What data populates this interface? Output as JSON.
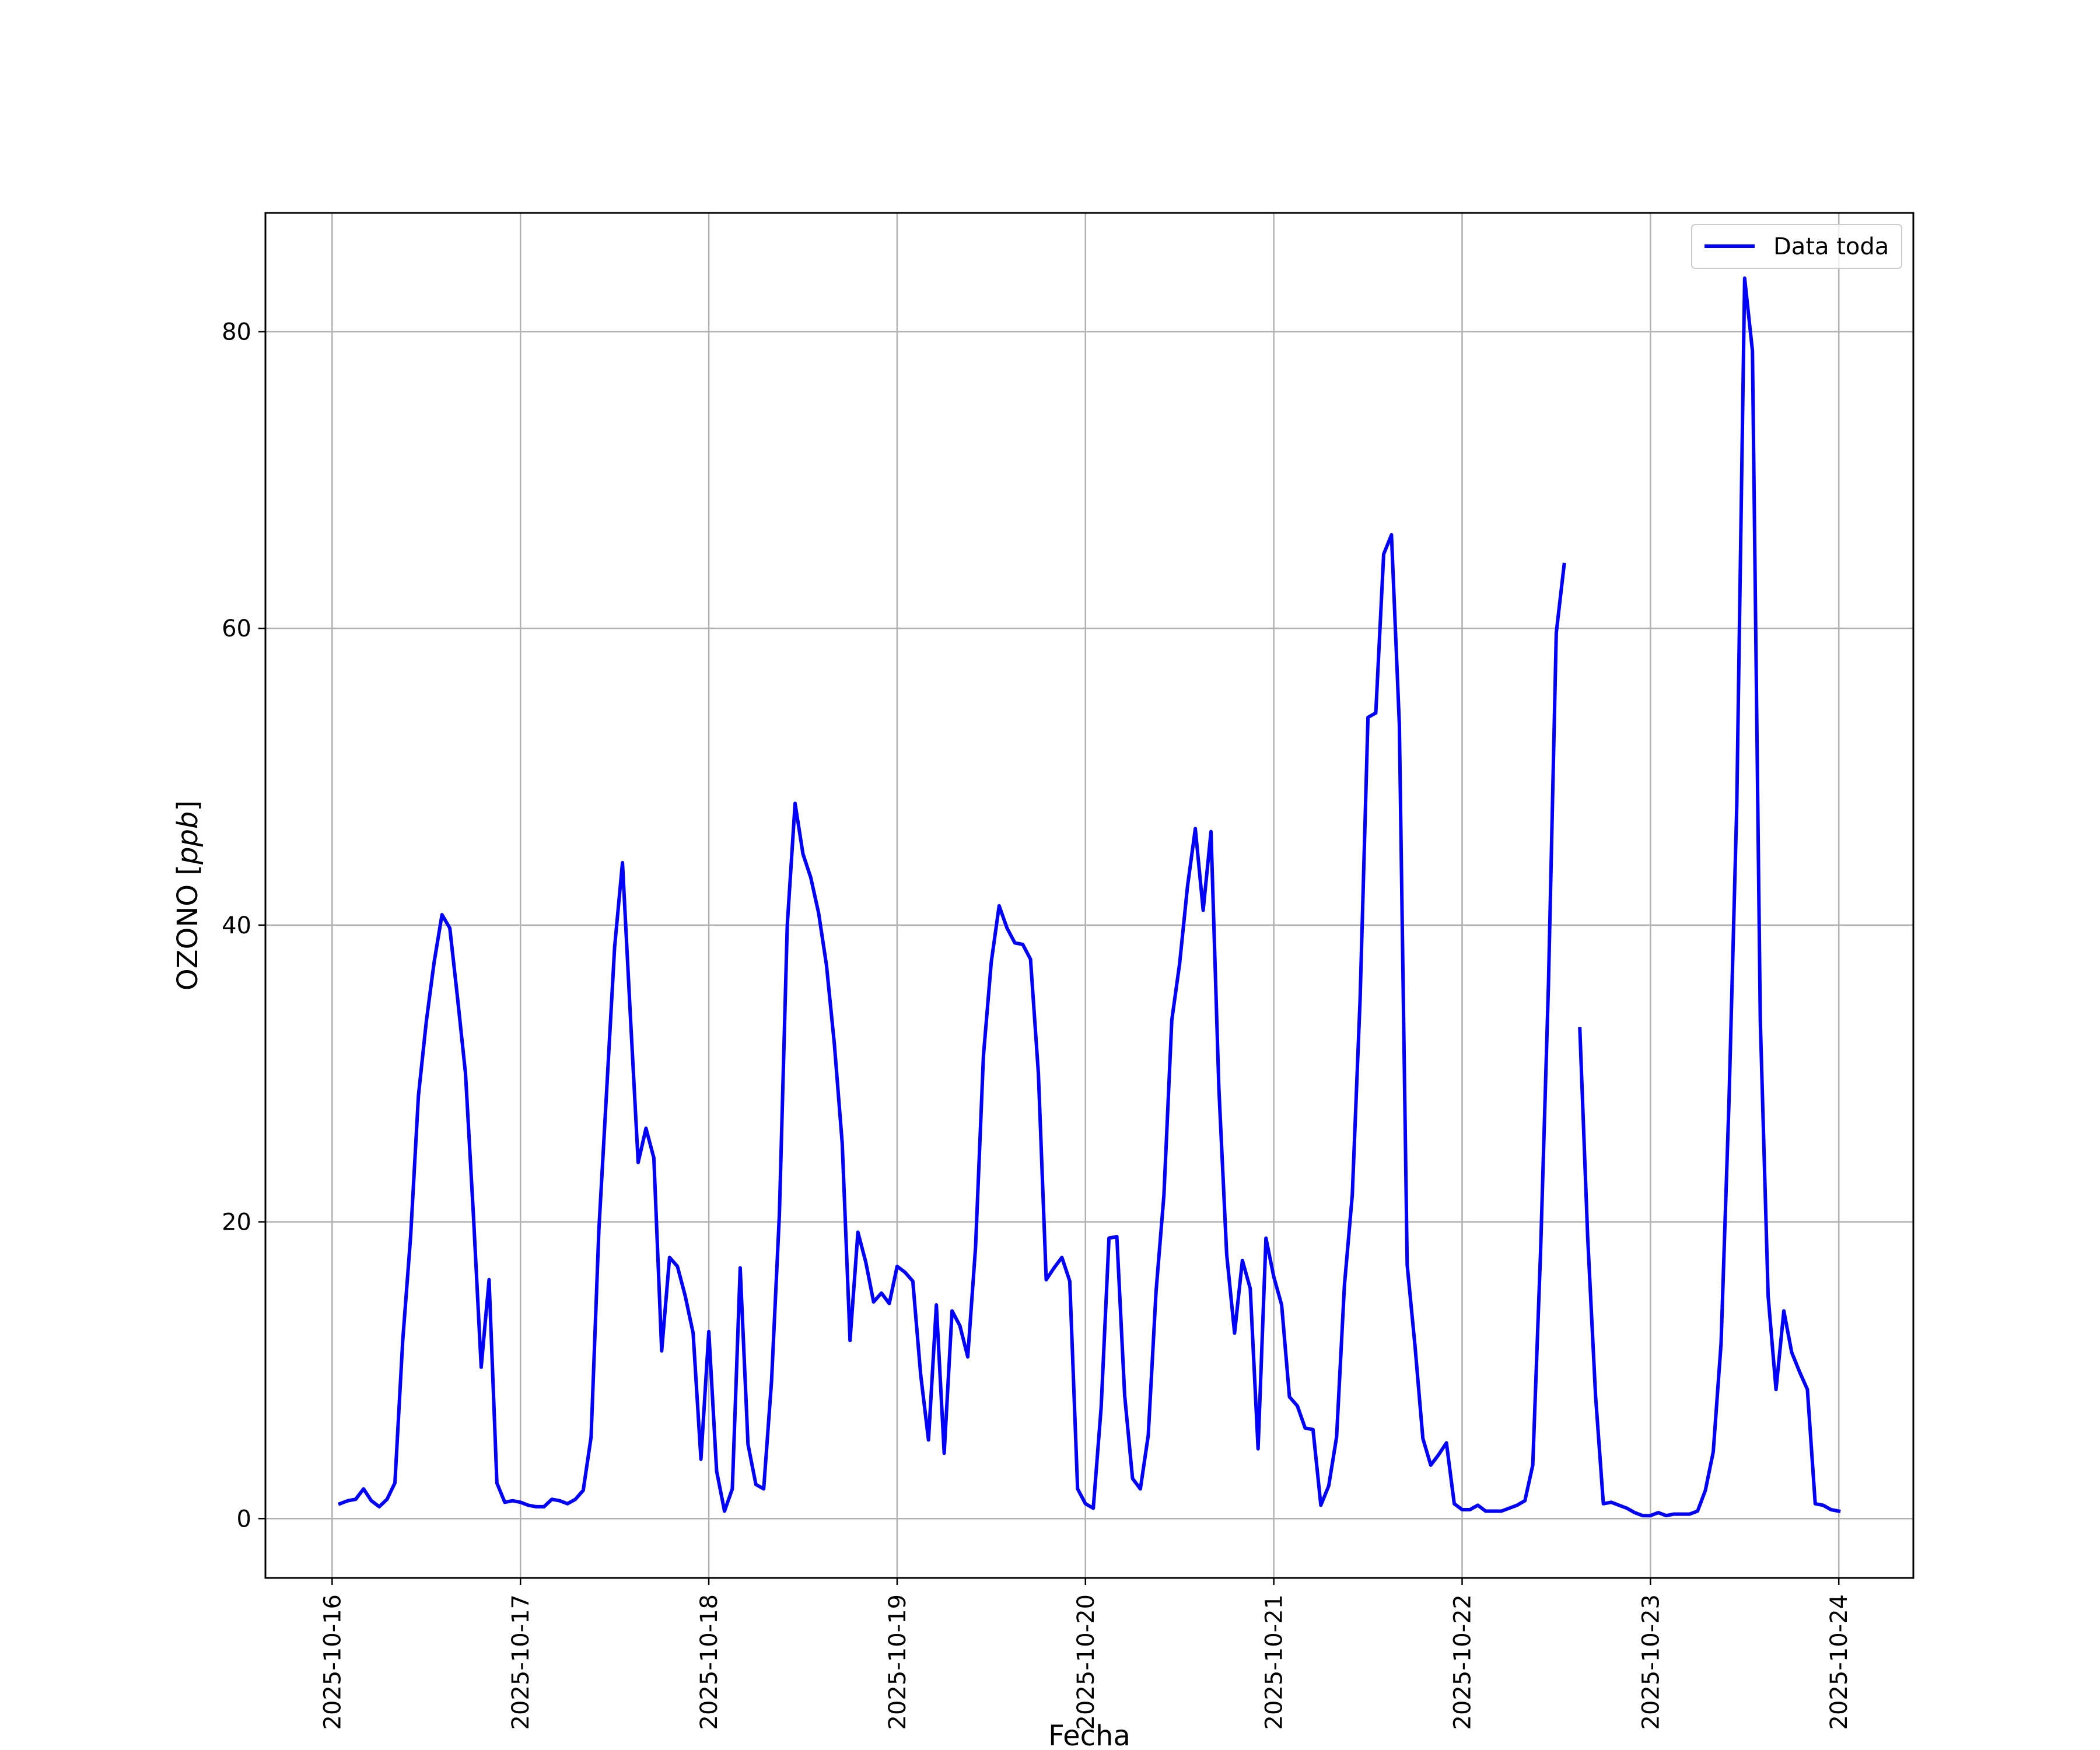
{
  "chart_data": {
    "type": "line",
    "title": "",
    "xlabel": "Fecha",
    "ylabel": "OZONO [ppb]",
    "ylabel_parts": {
      "prefix": "OZONO [",
      "unit": "ppb",
      "suffix": "]"
    },
    "legend": {
      "entries": [
        "Data toda"
      ],
      "placement": "upper right"
    },
    "grid": true,
    "x_type": "datetime",
    "xlim": [
      "2025-10-15T15:30",
      "2025-10-24T09:30"
    ],
    "ylim": [
      -4,
      88
    ],
    "x_ticks": [
      "2025-10-16",
      "2025-10-17",
      "2025-10-18",
      "2025-10-19",
      "2025-10-20",
      "2025-10-21",
      "2025-10-22",
      "2025-10-23",
      "2025-10-24"
    ],
    "y_ticks": [
      0,
      20,
      40,
      60,
      80
    ],
    "colors": {
      "series": "#0000ff",
      "grid": "#b0b0b0",
      "axes": "#000000"
    },
    "series": [
      {
        "name": "Data toda",
        "points": [
          [
            "2025-10-16T01:00",
            1.0
          ],
          [
            "2025-10-16T02:00",
            1.2
          ],
          [
            "2025-10-16T03:00",
            1.3
          ],
          [
            "2025-10-16T04:00",
            2.0
          ],
          [
            "2025-10-16T05:00",
            1.2
          ],
          [
            "2025-10-16T06:00",
            0.8
          ],
          [
            "2025-10-16T07:00",
            1.3
          ],
          [
            "2025-10-16T08:00",
            2.4
          ],
          [
            "2025-10-16T09:00",
            12.0
          ],
          [
            "2025-10-16T10:00",
            19.0
          ],
          [
            "2025-10-16T11:00",
            28.5
          ],
          [
            "2025-10-16T12:00",
            33.5
          ],
          [
            "2025-10-16T13:00",
            37.5
          ],
          [
            "2025-10-16T14:00",
            40.7
          ],
          [
            "2025-10-16T15:00",
            39.8
          ],
          [
            "2025-10-16T16:00",
            35.0
          ],
          [
            "2025-10-16T17:00",
            30.0
          ],
          [
            "2025-10-16T18:00",
            20.5
          ],
          [
            "2025-10-16T19:00",
            10.2
          ],
          [
            "2025-10-16T20:00",
            16.1
          ],
          [
            "2025-10-16T21:00",
            2.4
          ],
          [
            "2025-10-16T22:00",
            1.1
          ],
          [
            "2025-10-16T23:00",
            1.2
          ],
          [
            "2025-10-17T00:00",
            1.1
          ],
          [
            "2025-10-17T01:00",
            0.9
          ],
          [
            "2025-10-17T02:00",
            0.8
          ],
          [
            "2025-10-17T03:00",
            0.8
          ],
          [
            "2025-10-17T04:00",
            1.3
          ],
          [
            "2025-10-17T05:00",
            1.2
          ],
          [
            "2025-10-17T06:00",
            1.0
          ],
          [
            "2025-10-17T07:00",
            1.3
          ],
          [
            "2025-10-17T08:00",
            1.9
          ],
          [
            "2025-10-17T09:00",
            5.5
          ],
          [
            "2025-10-17T10:00",
            19.5
          ],
          [
            "2025-10-17T11:00",
            29.0
          ],
          [
            "2025-10-17T12:00",
            38.5
          ],
          [
            "2025-10-17T13:00",
            44.2
          ],
          [
            "2025-10-17T14:00",
            34.0
          ],
          [
            "2025-10-17T15:00",
            24.0
          ],
          [
            "2025-10-17T16:00",
            26.3
          ],
          [
            "2025-10-17T17:00",
            24.3
          ],
          [
            "2025-10-17T18:00",
            11.3
          ],
          [
            "2025-10-17T19:00",
            17.6
          ],
          [
            "2025-10-17T20:00",
            17.0
          ],
          [
            "2025-10-17T21:00",
            15.0
          ],
          [
            "2025-10-17T22:00",
            12.5
          ],
          [
            "2025-10-17T23:00",
            4.0
          ],
          [
            "2025-10-18T00:00",
            12.6
          ],
          [
            "2025-10-18T01:00",
            3.2
          ],
          [
            "2025-10-18T02:00",
            0.5
          ],
          [
            "2025-10-18T03:00",
            2.0
          ],
          [
            "2025-10-18T04:00",
            16.9
          ],
          [
            "2025-10-18T05:00",
            5.0
          ],
          [
            "2025-10-18T06:00",
            2.3
          ],
          [
            "2025-10-18T07:00",
            2.0
          ],
          [
            "2025-10-18T08:00",
            9.3
          ],
          [
            "2025-10-18T09:00",
            20.5
          ],
          [
            "2025-10-18T10:00",
            40.0
          ],
          [
            "2025-10-18T11:00",
            48.2
          ],
          [
            "2025-10-18T12:00",
            44.8
          ],
          [
            "2025-10-18T13:00",
            43.2
          ],
          [
            "2025-10-18T14:00",
            40.8
          ],
          [
            "2025-10-18T15:00",
            37.3
          ],
          [
            "2025-10-18T16:00",
            32.0
          ],
          [
            "2025-10-18T17:00",
            25.3
          ],
          [
            "2025-10-18T18:00",
            12.0
          ],
          [
            "2025-10-18T19:00",
            19.3
          ],
          [
            "2025-10-18T20:00",
            17.3
          ],
          [
            "2025-10-18T21:00",
            14.6
          ],
          [
            "2025-10-18T22:00",
            15.2
          ],
          [
            "2025-10-18T23:00",
            14.5
          ],
          [
            "2025-10-19T00:00",
            17.0
          ],
          [
            "2025-10-19T01:00",
            16.6
          ],
          [
            "2025-10-19T02:00",
            16.0
          ],
          [
            "2025-10-19T03:00",
            9.7
          ],
          [
            "2025-10-19T04:00",
            5.3
          ],
          [
            "2025-10-19T05:00",
            14.4
          ],
          [
            "2025-10-19T06:00",
            4.4
          ],
          [
            "2025-10-19T07:00",
            14.0
          ],
          [
            "2025-10-19T08:00",
            13.0
          ],
          [
            "2025-10-19T09:00",
            10.9
          ],
          [
            "2025-10-19T10:00",
            18.3
          ],
          [
            "2025-10-19T11:00",
            31.2
          ],
          [
            "2025-10-19T12:00",
            37.5
          ],
          [
            "2025-10-19T13:00",
            41.3
          ],
          [
            "2025-10-19T14:00",
            39.8
          ],
          [
            "2025-10-19T15:00",
            38.8
          ],
          [
            "2025-10-19T16:00",
            38.7
          ],
          [
            "2025-10-19T17:00",
            37.7
          ],
          [
            "2025-10-19T18:00",
            30.0
          ],
          [
            "2025-10-19T19:00",
            16.1
          ],
          [
            "2025-10-19T20:00",
            16.9
          ],
          [
            "2025-10-19T21:00",
            17.6
          ],
          [
            "2025-10-19T22:00",
            16.0
          ],
          [
            "2025-10-19T23:00",
            2.0
          ],
          [
            "2025-10-20T00:00",
            1.0
          ],
          [
            "2025-10-20T01:00",
            0.7
          ],
          [
            "2025-10-20T02:00",
            7.5
          ],
          [
            "2025-10-20T03:00",
            18.9
          ],
          [
            "2025-10-20T04:00",
            19.0
          ],
          [
            "2025-10-20T05:00",
            8.3
          ],
          [
            "2025-10-20T06:00",
            2.7
          ],
          [
            "2025-10-20T07:00",
            2.0
          ],
          [
            "2025-10-20T08:00",
            5.6
          ],
          [
            "2025-10-20T09:00",
            15.3
          ],
          [
            "2025-10-20T10:00",
            21.8
          ],
          [
            "2025-10-20T11:00",
            33.6
          ],
          [
            "2025-10-20T12:00",
            37.4
          ],
          [
            "2025-10-20T13:00",
            42.6
          ],
          [
            "2025-10-20T14:00",
            46.5
          ],
          [
            "2025-10-20T15:00",
            41.0
          ],
          [
            "2025-10-20T16:00",
            46.3
          ],
          [
            "2025-10-20T17:00",
            29.0
          ],
          [
            "2025-10-20T18:00",
            17.8
          ],
          [
            "2025-10-20T19:00",
            12.5
          ],
          [
            "2025-10-20T20:00",
            17.4
          ],
          [
            "2025-10-20T21:00",
            15.5
          ],
          [
            "2025-10-20T22:00",
            4.7
          ],
          [
            "2025-10-20T23:00",
            18.9
          ],
          [
            "2025-10-21T00:00",
            16.3
          ],
          [
            "2025-10-21T01:00",
            14.4
          ],
          [
            "2025-10-21T02:00",
            8.2
          ],
          [
            "2025-10-21T03:00",
            7.6
          ],
          [
            "2025-10-21T04:00",
            6.1
          ],
          [
            "2025-10-21T05:00",
            6.0
          ],
          [
            "2025-10-21T06:00",
            0.9
          ],
          [
            "2025-10-21T07:00",
            2.2
          ],
          [
            "2025-10-21T08:00",
            5.5
          ],
          [
            "2025-10-21T09:00",
            15.7
          ],
          [
            "2025-10-21T10:00",
            21.8
          ],
          [
            "2025-10-21T11:00",
            35.0
          ],
          [
            "2025-10-21T12:00",
            54.0
          ],
          [
            "2025-10-21T13:00",
            54.3
          ],
          [
            "2025-10-21T14:00",
            65.0
          ],
          [
            "2025-10-21T15:00",
            66.3
          ],
          [
            "2025-10-21T16:00",
            53.5
          ],
          [
            "2025-10-21T17:00",
            17.1
          ],
          [
            "2025-10-21T18:00",
            11.6
          ],
          [
            "2025-10-21T19:00",
            5.4
          ],
          [
            "2025-10-21T20:00",
            3.6
          ],
          [
            "2025-10-21T21:00",
            4.3
          ],
          [
            "2025-10-21T22:00",
            5.1
          ],
          [
            "2025-10-21T23:00",
            1.0
          ],
          [
            "2025-10-22T00:00",
            0.6
          ],
          [
            "2025-10-22T01:00",
            0.6
          ],
          [
            "2025-10-22T02:00",
            0.9
          ],
          [
            "2025-10-22T03:00",
            0.5
          ],
          [
            "2025-10-22T04:00",
            0.5
          ],
          [
            "2025-10-22T05:00",
            0.5
          ],
          [
            "2025-10-22T06:00",
            0.7
          ],
          [
            "2025-10-22T07:00",
            0.9
          ],
          [
            "2025-10-22T08:00",
            1.2
          ],
          [
            "2025-10-22T09:00",
            3.6
          ],
          [
            "2025-10-22T10:00",
            18.0
          ],
          [
            "2025-10-22T11:00",
            36.0
          ],
          [
            "2025-10-22T12:00",
            59.7
          ],
          [
            "2025-10-22T13:00",
            64.3
          ],
          null,
          [
            "2025-10-22T15:00",
            33.0
          ],
          [
            "2025-10-22T16:00",
            19.0
          ],
          [
            "2025-10-22T17:00",
            8.3
          ],
          [
            "2025-10-22T18:00",
            1.0
          ],
          [
            "2025-10-22T19:00",
            1.1
          ],
          [
            "2025-10-22T20:00",
            0.9
          ],
          [
            "2025-10-22T21:00",
            0.7
          ],
          [
            "2025-10-22T22:00",
            0.4
          ],
          [
            "2025-10-22T23:00",
            0.2
          ],
          [
            "2025-10-23T00:00",
            0.2
          ],
          [
            "2025-10-23T01:00",
            0.4
          ],
          [
            "2025-10-23T02:00",
            0.2
          ],
          [
            "2025-10-23T03:00",
            0.3
          ],
          [
            "2025-10-23T04:00",
            0.3
          ],
          [
            "2025-10-23T05:00",
            0.3
          ],
          [
            "2025-10-23T06:00",
            0.5
          ],
          [
            "2025-10-23T07:00",
            1.9
          ],
          [
            "2025-10-23T08:00",
            4.5
          ],
          [
            "2025-10-23T09:00",
            11.8
          ],
          [
            "2025-10-23T10:00",
            28.0
          ],
          [
            "2025-10-23T11:00",
            48.0
          ],
          [
            "2025-10-23T12:00",
            83.6
          ],
          [
            "2025-10-23T13:00",
            78.7
          ],
          [
            "2025-10-23T14:00",
            33.5
          ],
          [
            "2025-10-23T15:00",
            15.0
          ],
          [
            "2025-10-23T16:00",
            8.7
          ],
          [
            "2025-10-23T17:00",
            14.0
          ],
          [
            "2025-10-23T18:00",
            11.2
          ],
          [
            "2025-10-23T19:00",
            9.9
          ],
          [
            "2025-10-23T20:00",
            8.7
          ],
          [
            "2025-10-23T21:00",
            1.0
          ],
          [
            "2025-10-23T22:00",
            0.9
          ],
          [
            "2025-10-23T23:00",
            0.6
          ],
          [
            "2025-10-24T00:00",
            0.5
          ]
        ]
      }
    ]
  }
}
